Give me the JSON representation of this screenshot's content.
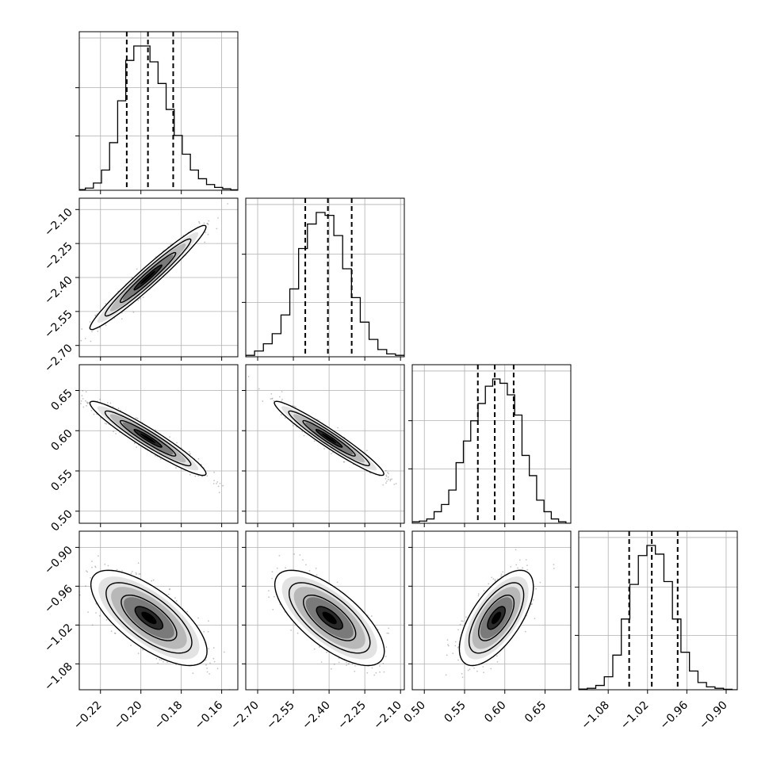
{
  "figure": {
    "type": "corner-plot",
    "variables": 4,
    "grid_lines": true,
    "histogram_style": "step",
    "quantile_lines": "dashed"
  },
  "colors": {
    "line": "#000000",
    "grid": "#b0b0b0",
    "axis": "#000000",
    "scatter_points": "#555555",
    "density_light": "#d9d9d9",
    "density_dark": "#000000"
  },
  "chart_data": [
    {
      "type": "histogram",
      "variable": 0,
      "bins": [
        -0.2295,
        -0.2255,
        -0.2215,
        -0.2175,
        -0.2135,
        -0.2095,
        -0.2055,
        -0.2015,
        -0.1975,
        -0.1935,
        -0.1895,
        -0.1855,
        -0.1815,
        -0.1775,
        -0.1735,
        -0.1695,
        -0.1655,
        -0.1615,
        -0.1575,
        -0.1535
      ],
      "counts": [
        0.5,
        1.5,
        5,
        14,
        33,
        62,
        90,
        100,
        100,
        89,
        74,
        56,
        38,
        25,
        14,
        8,
        4,
        2,
        1,
        0.3
      ],
      "quantiles": [
        -0.207,
        -0.1965,
        -0.184
      ],
      "xlim": [
        -0.2305,
        -0.152
      ]
    },
    {
      "type": "scatter-density",
      "x_variable": 0,
      "y_variable": 1,
      "center": [
        -0.1965,
        -2.4
      ],
      "std": [
        0.0125,
        0.1
      ],
      "correlation": 0.97,
      "xlim": [
        -0.2305,
        -0.152
      ],
      "ylim": [
        -2.75,
        -2.05
      ]
    },
    {
      "type": "histogram",
      "variable": 1,
      "bins": [
        -2.7315,
        -2.6945,
        -2.6575,
        -2.6205,
        -2.5835,
        -2.5465,
        -2.5095,
        -2.4725,
        -2.4355,
        -2.3985,
        -2.3615,
        -2.3245,
        -2.2875,
        -2.2505,
        -2.2135,
        -2.1765,
        -2.1395,
        -2.1025
      ],
      "counts": [
        1,
        4,
        9,
        16,
        29,
        47,
        75,
        92,
        100,
        98,
        84,
        61,
        41,
        24,
        12,
        5,
        2,
        1
      ],
      "quantiles": [
        -2.5,
        -2.405,
        -2.305
      ],
      "xlim": [
        -2.75,
        -2.084
      ]
    },
    {
      "type": "scatter-density",
      "x_variable": 0,
      "y_variable": 2,
      "center": [
        -0.1965,
        0.5905
      ],
      "std": [
        0.0125,
        0.02
      ],
      "correlation": -0.95,
      "xlim": [
        -0.2305,
        -0.152
      ],
      "ylim": [
        0.485,
        0.682
      ]
    },
    {
      "type": "scatter-density",
      "x_variable": 1,
      "y_variable": 2,
      "center": [
        -2.4,
        0.5905
      ],
      "std": [
        0.1,
        0.02
      ],
      "correlation": -0.96,
      "xlim": [
        -2.75,
        -2.084
      ],
      "ylim": [
        0.485,
        0.682
      ]
    },
    {
      "type": "histogram",
      "variable": 2,
      "bins": [
        0.4894,
        0.4985,
        0.5076,
        0.5167,
        0.5258,
        0.5349,
        0.544,
        0.5531,
        0.5622,
        0.5713,
        0.5804,
        0.5895,
        0.5986,
        0.6077,
        0.6168,
        0.6259,
        0.635,
        0.6441,
        0.6532,
        0.6623,
        0.6714
      ],
      "counts": [
        1,
        1.5,
        3,
        8,
        13,
        23,
        42,
        57,
        71,
        83,
        95,
        100,
        97,
        89,
        75,
        47,
        33,
        16,
        8,
        3,
        1
      ],
      "quantiles": [
        0.5665,
        0.5875,
        0.611
      ],
      "xlim": [
        0.485,
        0.682
      ]
    },
    {
      "type": "scatter-density",
      "x_variable": 0,
      "y_variable": 3,
      "center": [
        -0.196,
        -1.009
      ],
      "std": [
        0.0125,
        0.032
      ],
      "correlation": -0.7,
      "xlim": [
        -0.2305,
        -0.152
      ],
      "ylim": [
        -1.12,
        -0.875
      ]
    },
    {
      "type": "scatter-density",
      "x_variable": 1,
      "y_variable": 3,
      "center": [
        -2.398,
        -1.009
      ],
      "std": [
        0.1,
        0.032
      ],
      "correlation": -0.7,
      "xlim": [
        -2.75,
        -2.084
      ],
      "ylim": [
        -1.12,
        -0.875
      ]
    },
    {
      "type": "scatter-density",
      "x_variable": 2,
      "y_variable": 3,
      "center": [
        0.5895,
        -1.009
      ],
      "std": [
        0.02,
        0.032
      ],
      "correlation": 0.65,
      "xlim": [
        0.485,
        0.682
      ],
      "ylim": [
        -1.12,
        -0.875
      ]
    },
    {
      "type": "histogram",
      "variable": 3,
      "bins": [
        -1.1185,
        -1.1055,
        -1.0925,
        -1.0795,
        -1.0665,
        -1.0535,
        -1.0405,
        -1.0275,
        -1.0145,
        -1.0015,
        -0.9885,
        -0.9755,
        -0.9625,
        -0.9495,
        -0.9365,
        -0.9235,
        -0.9105,
        -0.8975
      ],
      "counts": [
        0.5,
        1,
        3,
        9,
        24,
        49,
        73,
        93,
        100,
        94,
        75,
        49,
        26,
        13,
        5,
        2,
        1,
        0.3
      ],
      "quantiles": [
        -1.048,
        -1.0135,
        -0.974
      ],
      "xlim": [
        -1.125,
        -0.883
      ]
    }
  ],
  "axes": {
    "x_ticks": [
      [
        "−0.22",
        "−0.20",
        "−0.18",
        "−0.16"
      ],
      [
        "−2.70",
        "−2.55",
        "−2.40",
        "−2.25",
        "−2.10"
      ],
      [
        "0.50",
        "0.55",
        "0.60",
        "0.65"
      ],
      [
        "−1.08",
        "−1.02",
        "−0.96",
        "−0.90"
      ]
    ],
    "y_ticks": {
      "1": [
        "−2.10",
        "−2.25",
        "−2.40",
        "−2.55",
        "−2.70"
      ],
      "2": [
        "0.65",
        "0.60",
        "0.55",
        "0.50"
      ],
      "3": [
        "−0.90",
        "−0.96",
        "−1.02",
        "−1.08"
      ]
    }
  }
}
